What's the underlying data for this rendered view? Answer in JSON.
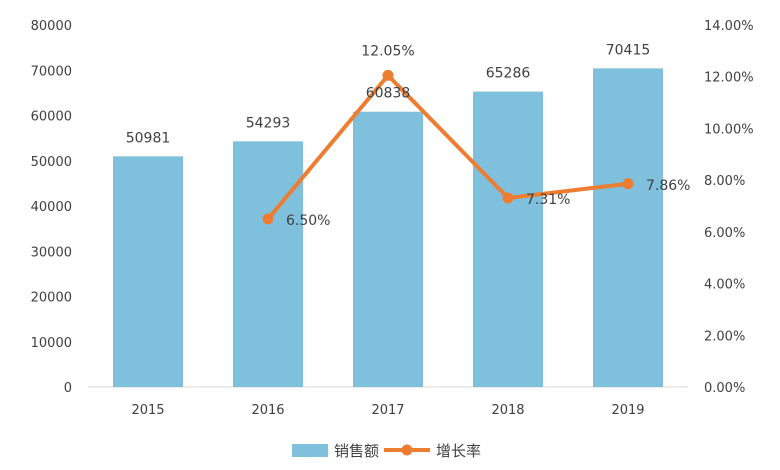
{
  "chart_data": {
    "type": "bar",
    "title": "",
    "categories": [
      "2015",
      "2016",
      "2017",
      "2018",
      "2019"
    ],
    "series": [
      {
        "name": "销售额",
        "type": "bar",
        "axis": "left",
        "color": "#7fc1dd",
        "values": [
          50981,
          54293,
          60838,
          65286,
          70415
        ],
        "labels": [
          "50981",
          "54293",
          "60838",
          "65286",
          "70415"
        ]
      },
      {
        "name": "增长率",
        "type": "line",
        "axis": "right",
        "color": "#ed7d31",
        "values": [
          null,
          6.5,
          12.05,
          7.31,
          7.86
        ],
        "labels": [
          "",
          "6.50%",
          "12.05%",
          "7.31%",
          "7.86%"
        ]
      }
    ],
    "y_left": {
      "ylim": [
        0,
        80000
      ],
      "ticks": [
        "0",
        "10000",
        "20000",
        "30000",
        "40000",
        "50000",
        "60000",
        "70000",
        "80000"
      ]
    },
    "y_right": {
      "ylim": [
        0,
        14
      ],
      "ticks": [
        "0.00%",
        "2.00%",
        "4.00%",
        "6.00%",
        "8.00%",
        "10.00%",
        "12.00%",
        "14.00%"
      ]
    },
    "grid": false,
    "legend": "bottom"
  }
}
